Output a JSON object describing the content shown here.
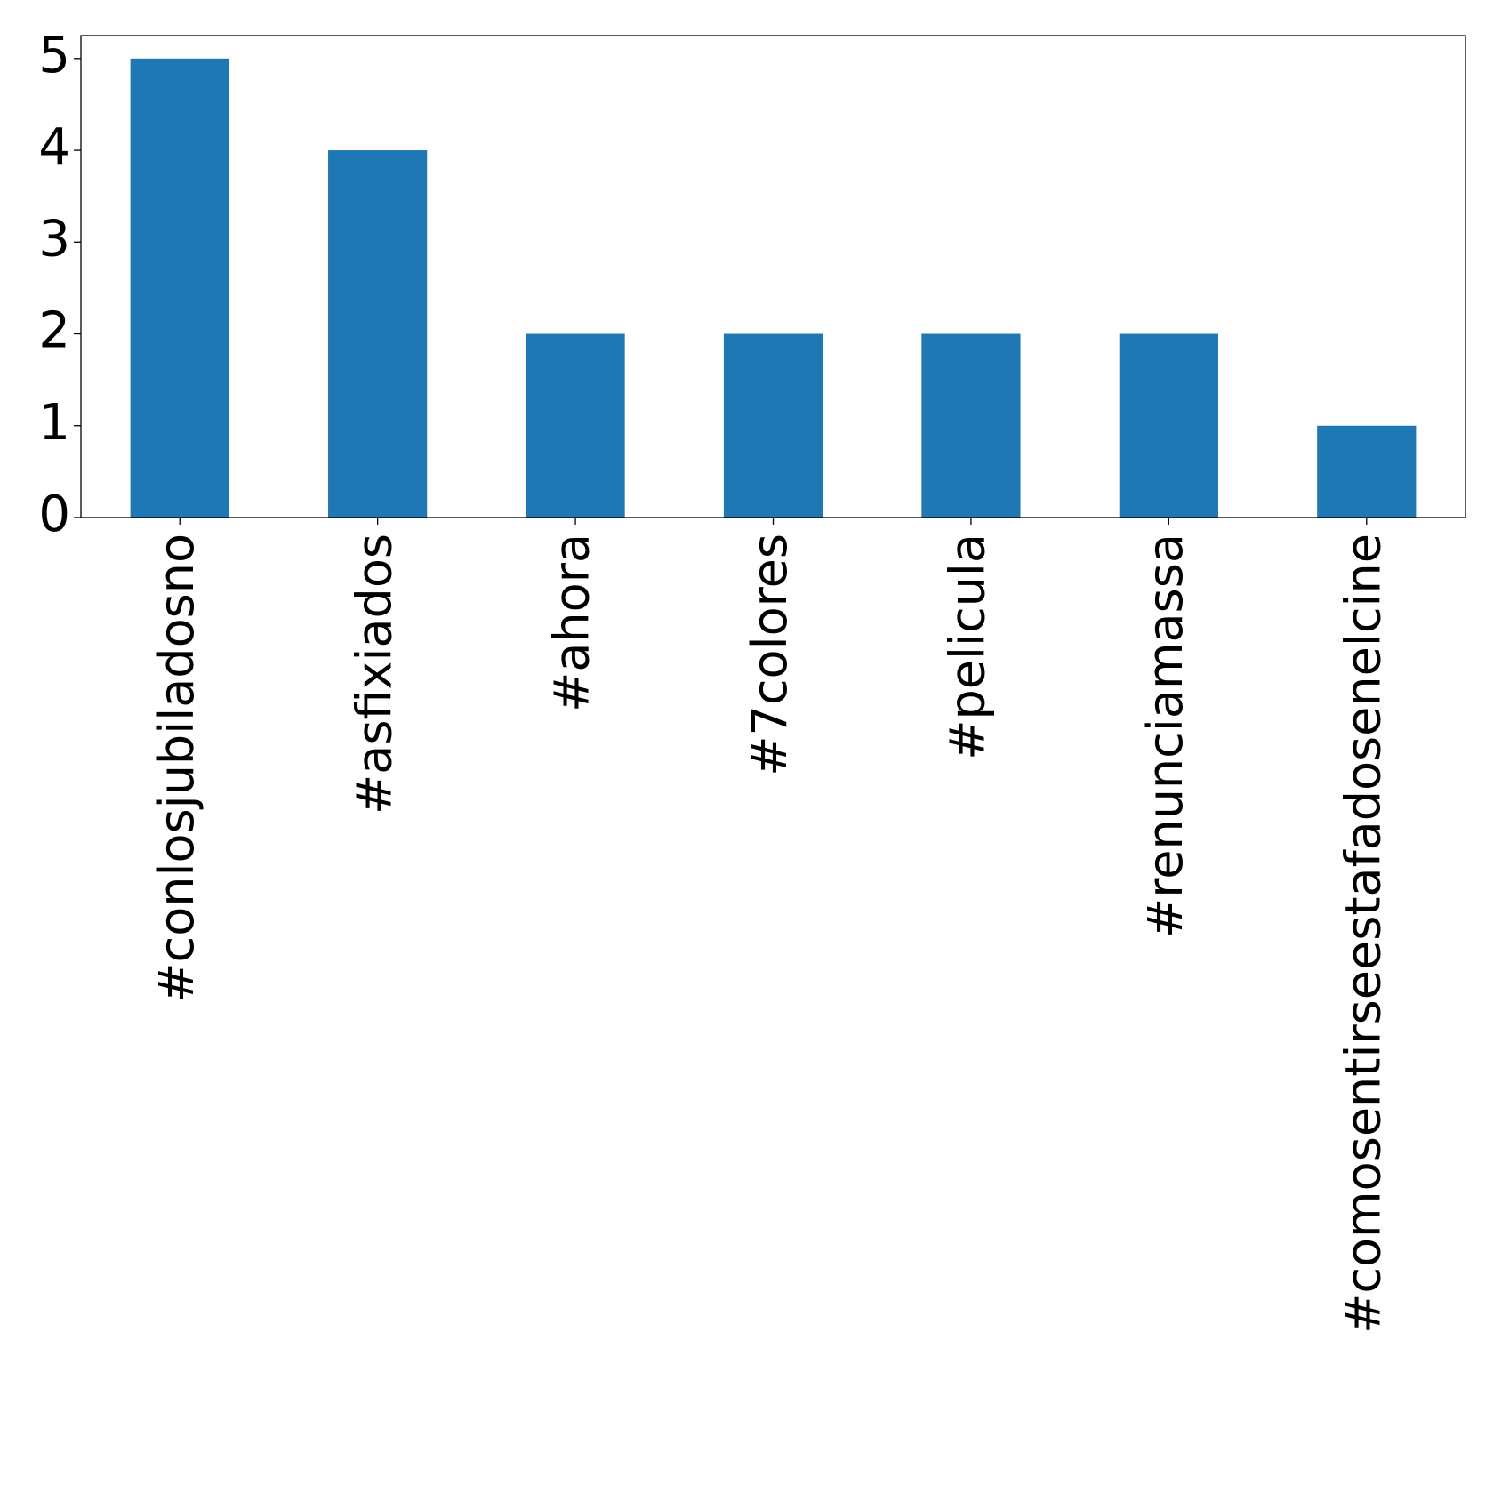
{
  "chart_data": {
    "type": "bar",
    "title": "",
    "xlabel": "",
    "ylabel": "",
    "categories": [
      "#conlosjubiladosno",
      "#asfixiados",
      "#ahora",
      "#7colores",
      "#pelicula",
      "#renunciamassa",
      "#comosentirseestafadosenelcine"
    ],
    "values": [
      5,
      4,
      2,
      2,
      2,
      2,
      1
    ],
    "ylim": [
      0,
      5.25
    ],
    "yticks": [
      0,
      1,
      2,
      3,
      4,
      5
    ],
    "grid": false,
    "legend": "none",
    "bar_color": "#1f77b4"
  }
}
